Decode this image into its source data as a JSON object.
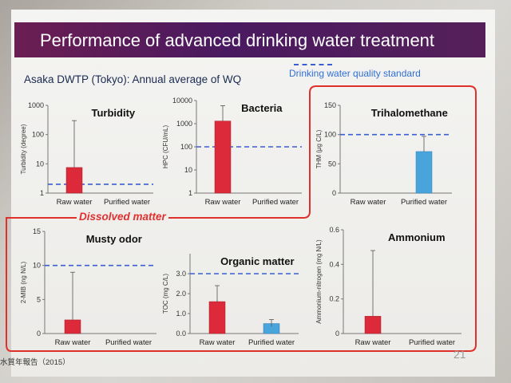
{
  "slide": {
    "title": "Performance of advanced drinking water treatment",
    "subtitle": "Asaka DWTP (Tokyo): Annual average of WQ",
    "legend_label": "Drinking water quality standard",
    "group_label": "Dissolved matter",
    "source": "水質年報告（2015）",
    "page_number": "21"
  },
  "colors": {
    "raw": "#dc2a3a",
    "purified": "#4aa4dc",
    "standard": "#3b5fcf",
    "frame": "#e0302c",
    "title_bg": "#5a1d5a"
  },
  "chart_data": [
    {
      "type": "bar",
      "title": "Turbidity",
      "ylabel": "Turbidity (degree)",
      "scale": "log",
      "ylim": [
        1,
        1000
      ],
      "ticks": [
        "1",
        "10",
        "100",
        "1000"
      ],
      "tick_values": [
        1,
        10,
        100,
        1000
      ],
      "categories": [
        "Raw water",
        "Purified water"
      ],
      "values": [
        7.5,
        0
      ],
      "error_high": [
        300,
        null
      ],
      "standard": 2
    },
    {
      "type": "bar",
      "title": "Bacteria",
      "ylabel": "HPC (CFU/mL)",
      "scale": "log",
      "ylim": [
        1,
        10000
      ],
      "ticks": [
        "1",
        "10",
        "100",
        "1000",
        "10000"
      ],
      "tick_values": [
        1,
        10,
        100,
        1000,
        10000
      ],
      "categories": [
        "Raw water",
        "Purified water"
      ],
      "values": [
        1300,
        0
      ],
      "error_high": [
        6000,
        null
      ],
      "standard": 100
    },
    {
      "type": "bar",
      "title": "Trihalomethane",
      "ylabel": "THM (μg C/L)",
      "scale": "linear",
      "ylim": [
        0,
        150
      ],
      "ticks": [
        "0",
        "50",
        "100",
        "150"
      ],
      "tick_values": [
        0,
        50,
        100,
        150
      ],
      "categories": [
        "Raw water",
        "Purified water"
      ],
      "values": [
        0,
        71
      ],
      "error_high": [
        null,
        97
      ],
      "standard": 100
    },
    {
      "type": "bar",
      "title": "Musty odor",
      "ylabel": "2-MIB (ng N/L)",
      "scale": "linear",
      "ylim": [
        0,
        15
      ],
      "ticks": [
        "0",
        "5",
        "10",
        "15"
      ],
      "tick_values": [
        0,
        5,
        10,
        15
      ],
      "categories": [
        "Raw water",
        "Purified water"
      ],
      "values": [
        2,
        0
      ],
      "error_high": [
        9,
        null
      ],
      "standard": 10
    },
    {
      "type": "bar",
      "title": "Organic matter",
      "ylabel": "TOC (mg C/L)",
      "scale": "linear",
      "ylim": [
        0,
        4.0
      ],
      "ticks": [
        "0.0",
        "1.0",
        "2.0",
        "3.0"
      ],
      "tick_values": [
        0,
        1,
        2,
        3
      ],
      "categories": [
        "Raw water",
        "Purified water"
      ],
      "values": [
        1.6,
        0.5
      ],
      "error_high": [
        2.4,
        0.7
      ],
      "error_low": [
        null,
        0.35
      ],
      "standard": 3.0
    },
    {
      "type": "bar",
      "title": "Ammonium",
      "ylabel": "Ammonium-nitrogen (mg N/L)",
      "scale": "linear",
      "ylim": [
        0,
        0.6
      ],
      "ticks": [
        "0",
        "0.2",
        "0.4",
        "0.6"
      ],
      "tick_values": [
        0,
        0.2,
        0.4,
        0.6
      ],
      "categories": [
        "Raw water",
        "Purified water"
      ],
      "values": [
        0.1,
        0
      ],
      "error_high": [
        0.48,
        null
      ]
    }
  ]
}
